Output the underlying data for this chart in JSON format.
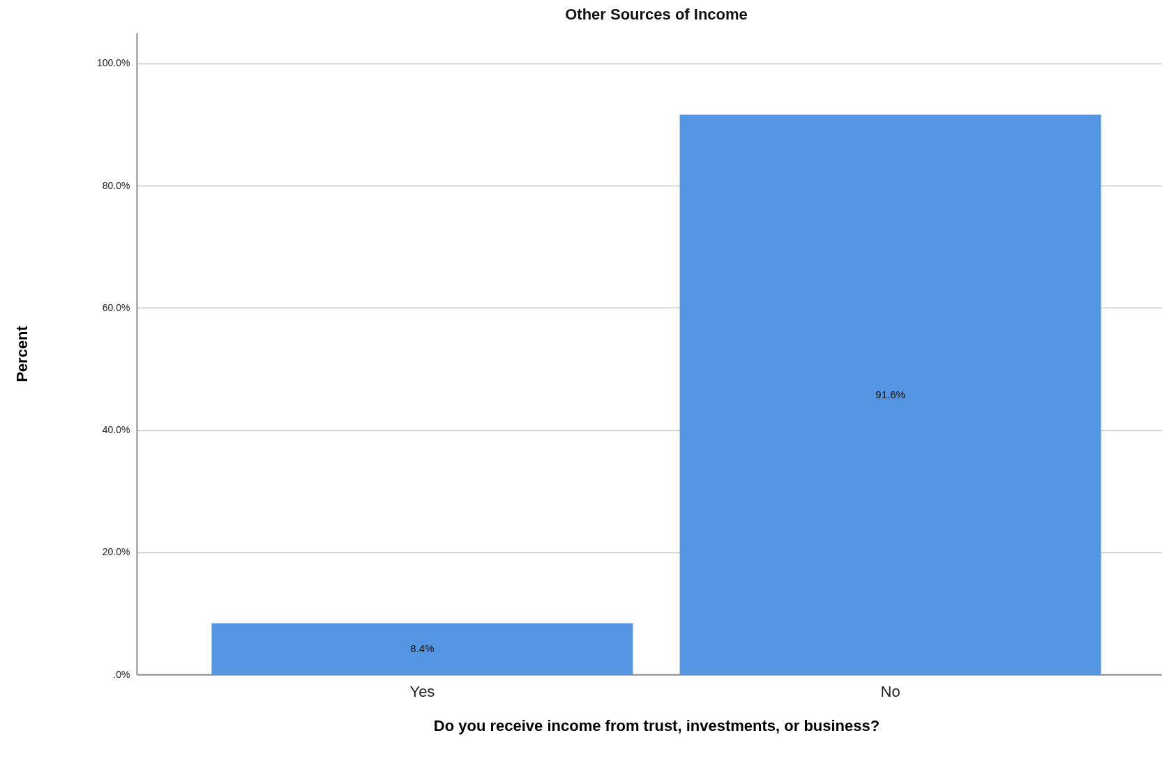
{
  "chart_data": {
    "type": "bar",
    "title": "Other Sources of Income",
    "xlabel": "Do you receive income from trust, investments, or business?",
    "ylabel": "Percent",
    "categories": [
      "Yes",
      "No"
    ],
    "values": [
      8.4,
      91.6
    ],
    "value_labels": [
      "8.4%",
      "91.6%"
    ],
    "color": "#5596e3",
    "ylim": [
      0,
      105
    ],
    "yticks": [
      {
        "value": 0,
        "label": ".0%"
      },
      {
        "value": 20,
        "label": "20.0%"
      },
      {
        "value": 40,
        "label": "40.0%"
      },
      {
        "value": 60,
        "label": "60.0%"
      },
      {
        "value": 80,
        "label": "80.0%"
      },
      {
        "value": 100,
        "label": "100.0%"
      }
    ],
    "grid": "y"
  }
}
